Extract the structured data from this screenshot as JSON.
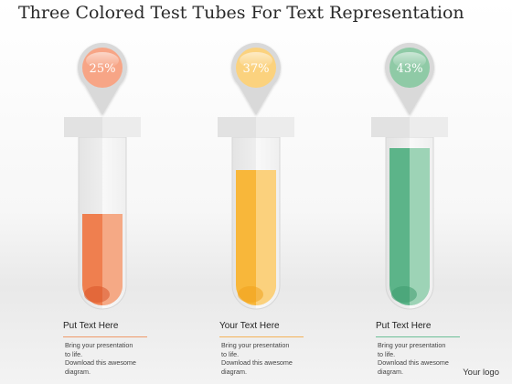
{
  "title": "Three Colored Test Tubes For Text Representation",
  "tubes": [
    {
      "percent_label": "25%",
      "fill_fraction": 0.25,
      "liquid_color": "#ef7f4f",
      "liquid_highlight": "#f6b08e",
      "liquid_dark": "#d9552a",
      "pin_color": "#f7a586",
      "heading": "Put Text Here",
      "rule_color": "#ef9a6a",
      "body": [
        "Bring your presentation",
        "to life.",
        "Download this awesome",
        "diagram."
      ]
    },
    {
      "percent_label": "37%",
      "fill_fraction": 0.37,
      "liquid_color": "#f8b73a",
      "liquid_highlight": "#fbd68a",
      "liquid_dark": "#f0a21c",
      "pin_color": "#fbd27e",
      "heading": "Your Text Here",
      "rule_color": "#f4b35a",
      "body": [
        "Bring your presentation",
        "to life.",
        "Download this awesome",
        "diagram."
      ]
    },
    {
      "percent_label": "43%",
      "fill_fraction": 0.43,
      "liquid_color": "#5cb489",
      "liquid_highlight": "#a8d8be",
      "liquid_dark": "#3f9c70",
      "pin_color": "#8fcaa6",
      "heading": "Put Text Here",
      "rule_color": "#6cbf97",
      "body": [
        "Bring your presentation",
        "to life.",
        "Download this awesome",
        "diagram."
      ]
    }
  ],
  "logo": "Your logo"
}
